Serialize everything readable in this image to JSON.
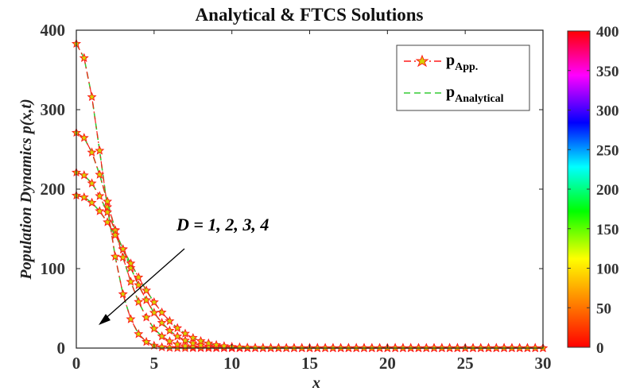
{
  "chart_data": {
    "type": "line",
    "title": "Analytical & FTCS Solutions",
    "xlabel": "x",
    "ylabel": "Population Dynamics p(x,t)",
    "xlim": [
      0,
      30
    ],
    "ylim": [
      0,
      400
    ],
    "xticks": [
      "0",
      "5",
      "10",
      "15",
      "20",
      "25",
      "30"
    ],
    "yticks": [
      "0",
      "100",
      "200",
      "300",
      "400"
    ],
    "grid": false,
    "legend_position": "top-right",
    "legend": [
      {
        "main": "p",
        "sub": "App.",
        "style": "red dash-dot with star markers"
      },
      {
        "main": "p",
        "sub": "Analytical",
        "style": "green dashed"
      }
    ],
    "annotation": "D = 1, 2, 3, 4",
    "x_step": 0.5,
    "curves": [
      {
        "D": 1,
        "peak": 383
      },
      {
        "D": 2,
        "peak": 271
      },
      {
        "D": 3,
        "peak": 221
      },
      {
        "D": 4,
        "peak": 192
      }
    ],
    "colorbar": {
      "range": [
        0,
        400
      ],
      "ticks": [
        "0",
        "50",
        "100",
        "150",
        "200",
        "250",
        "300",
        "350",
        "400"
      ],
      "colors": [
        "#ff0000",
        "#ff8000",
        "#ffff00",
        "#00ff00",
        "#00ffff",
        "#0000ff",
        "#ff00ff",
        "#ff0000"
      ]
    },
    "colors": {
      "approx": "#ff1a1a",
      "analytical": "#33cc33",
      "marker_fill": "#d4d400"
    }
  }
}
